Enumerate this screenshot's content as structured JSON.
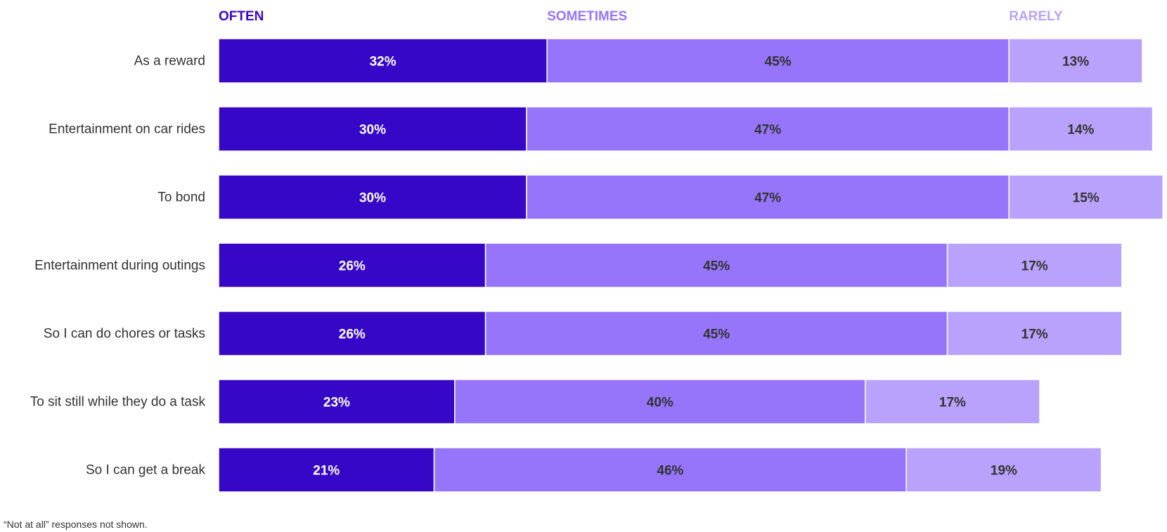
{
  "chart_data": {
    "type": "bar",
    "orientation": "horizontal",
    "stacked": true,
    "categories": [
      "As a reward",
      "Entertainment on car rides",
      "To bond",
      "Entertainment during outings",
      "So I can do chores or tasks",
      "To sit still while they do a task",
      "So I can get a break"
    ],
    "series": [
      {
        "name": "OFTEN",
        "color": "#3707c8",
        "label_color": "#ffffff",
        "values": [
          32,
          30,
          30,
          26,
          26,
          23,
          21
        ]
      },
      {
        "name": "SOMETIMES",
        "color": "#9675fb",
        "label_color": "#333333",
        "values": [
          45,
          47,
          47,
          45,
          45,
          40,
          46
        ]
      },
      {
        "name": "RARELY",
        "color": "#b9a2fc",
        "label_color": "#333333",
        "values": [
          13,
          14,
          15,
          17,
          17,
          17,
          19
        ]
      }
    ],
    "value_suffix": "%",
    "legend_position": "top",
    "grid": false
  },
  "footnote": "“Not at all” responses not shown."
}
